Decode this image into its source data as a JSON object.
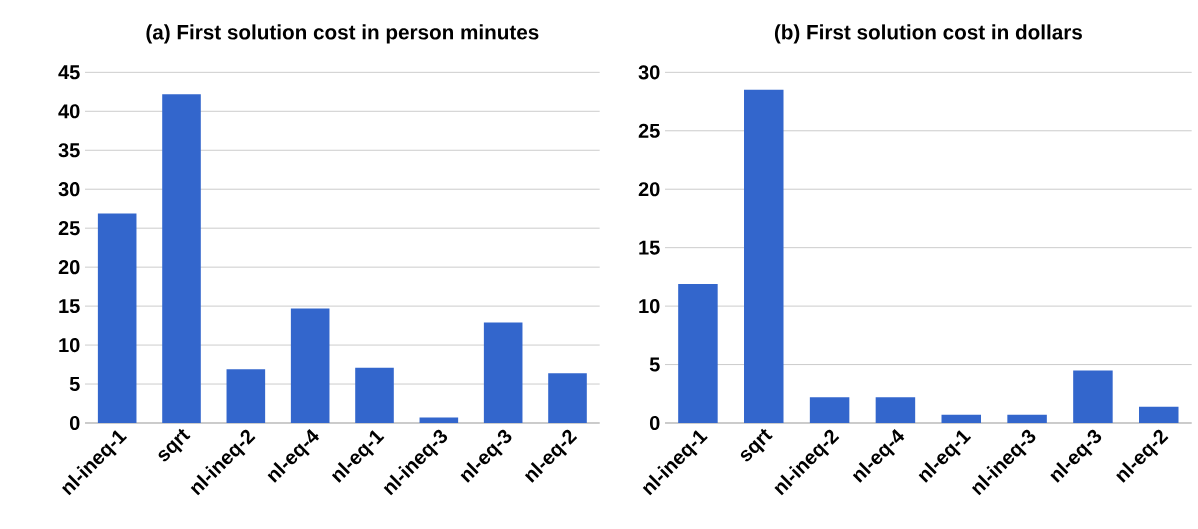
{
  "chart_data": [
    {
      "type": "bar",
      "title": "(a) First solution cost in person minutes",
      "categories": [
        "nl-ineq-1",
        "sqrt",
        "nl-ineq-2",
        "nl-eq-4",
        "nl-eq-1",
        "nl-ineq-3",
        "nl-eq-3",
        "nl-eq-2"
      ],
      "values": [
        26.9,
        42.2,
        6.9,
        14.7,
        7.1,
        0.7,
        12.9,
        6.4
      ],
      "color": "#3366cc",
      "ylim": [
        0,
        45
      ],
      "yticks": [
        0,
        5,
        10,
        15,
        20,
        25,
        30,
        35,
        40,
        45
      ],
      "grid": "y"
    },
    {
      "type": "bar",
      "title": "(b) First solution cost in dollars",
      "categories": [
        "nl-ineq-1",
        "sqrt",
        "nl-ineq-2",
        "nl-eq-4",
        "nl-eq-1",
        "nl-ineq-3",
        "nl-eq-3",
        "nl-eq-2"
      ],
      "values": [
        11.9,
        28.5,
        2.2,
        2.2,
        0.7,
        0.7,
        4.5,
        1.4
      ],
      "color": "#3366cc",
      "ylim": [
        0,
        30
      ],
      "yticks": [
        0,
        5,
        10,
        15,
        20,
        25,
        30
      ],
      "grid": "y"
    }
  ]
}
